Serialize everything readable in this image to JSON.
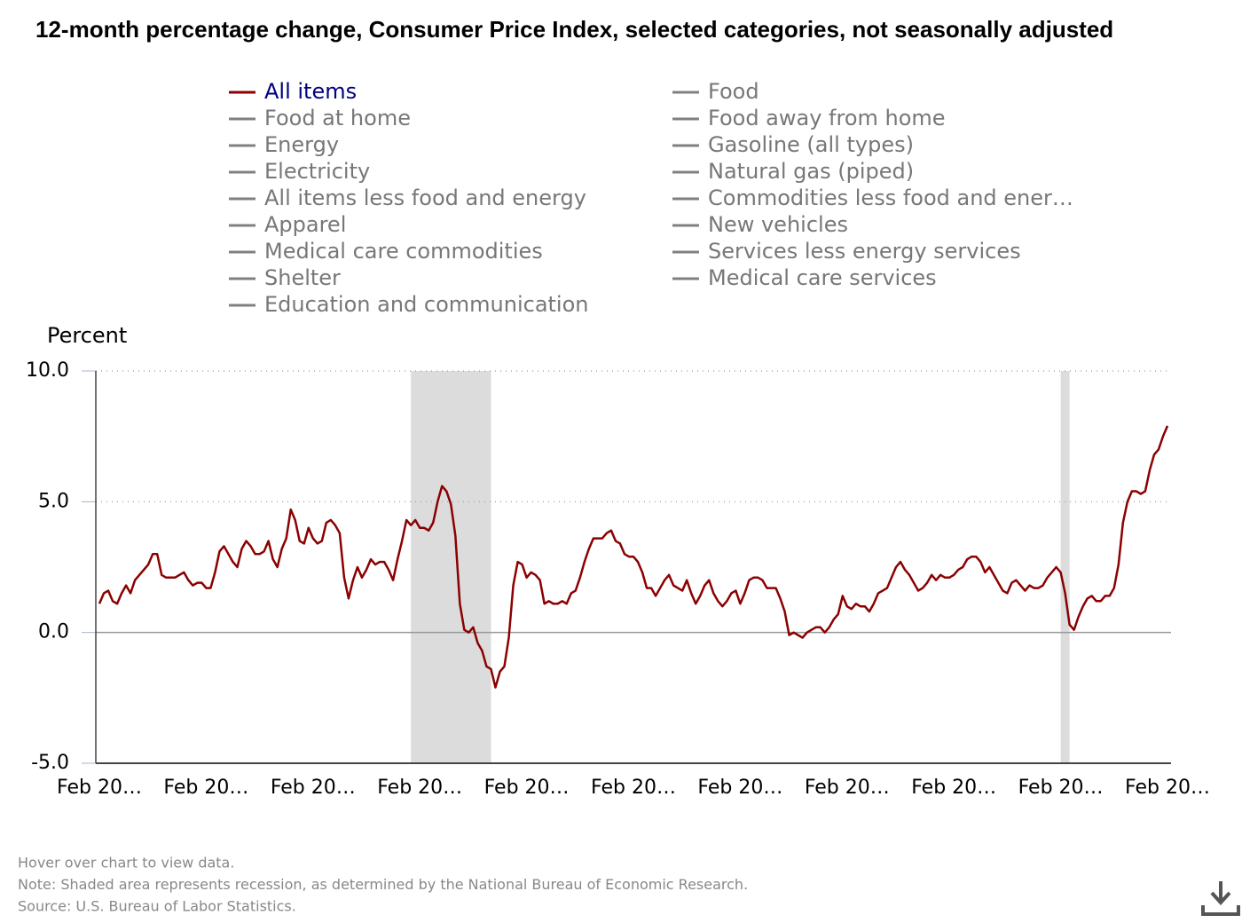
{
  "chart_data": {
    "type": "line",
    "title": "12-month percentage change, Consumer Price Index, selected categories, not seasonally adjusted",
    "y_label": "Percent",
    "categories": [
      "Feb 20…",
      null,
      null,
      null,
      null,
      null,
      null,
      null,
      null,
      null,
      null,
      null,
      null,
      null,
      null,
      null,
      null,
      null,
      null,
      null,
      null,
      null,
      null,
      null,
      "Feb 20…",
      null,
      null,
      null,
      null,
      null,
      null,
      null,
      null,
      null,
      null,
      null,
      null,
      null,
      null,
      null,
      null,
      null,
      null,
      null,
      null,
      null,
      null,
      null,
      "Feb 20…",
      null,
      null,
      null,
      null,
      null,
      null,
      null,
      null,
      null,
      null,
      null,
      null,
      null,
      null,
      null,
      null,
      null,
      null,
      null,
      null,
      null,
      null,
      null,
      "Feb 20…",
      null,
      null,
      null,
      null,
      null,
      null,
      null,
      null,
      null,
      null,
      null,
      null,
      null,
      null,
      null,
      null,
      null,
      null,
      null,
      null,
      null,
      null,
      null,
      "Feb 20…",
      null,
      null,
      null,
      null,
      null,
      null,
      null,
      null,
      null,
      null,
      null,
      null,
      null,
      null,
      null,
      null,
      null,
      null,
      null,
      null,
      null,
      null,
      null,
      "Feb 20…",
      null,
      null,
      null,
      null,
      null,
      null,
      null,
      null,
      null,
      null,
      null,
      null,
      null,
      null,
      null,
      null,
      null,
      null,
      null,
      null,
      null,
      null,
      null,
      "Feb 20…",
      null,
      null,
      null,
      null,
      null,
      null,
      null,
      null,
      null,
      null,
      null,
      null,
      null,
      null,
      null,
      null,
      null,
      null,
      null,
      null,
      null,
      null,
      null,
      "Feb 20…",
      null,
      null,
      null,
      null,
      null,
      null,
      null,
      null,
      null,
      null,
      null,
      null,
      null,
      null,
      null,
      null,
      null,
      null,
      null,
      null,
      null,
      null,
      null,
      "Feb 20…",
      null,
      null,
      null,
      null,
      null,
      null,
      null,
      null,
      null,
      null,
      null,
      null,
      null,
      null,
      null,
      null,
      null,
      null,
      null,
      null,
      null,
      null,
      null,
      "Feb 20…",
      null,
      null,
      null,
      null,
      null,
      null,
      null,
      null,
      null,
      null,
      null,
      null,
      null,
      null,
      null,
      null,
      null,
      null,
      null,
      null,
      null,
      null,
      null,
      "Feb 20…"
    ],
    "series": [
      {
        "name": "All items",
        "color": "#8b0000",
        "values": [
          1.1,
          1.5,
          1.6,
          1.2,
          1.1,
          1.5,
          1.8,
          1.5,
          2.0,
          2.2,
          2.4,
          2.6,
          3.0,
          3.0,
          2.2,
          2.1,
          2.1,
          2.1,
          2.2,
          2.3,
          2.0,
          1.8,
          1.9,
          1.9,
          1.7,
          1.7,
          2.3,
          3.1,
          3.3,
          3.0,
          2.7,
          2.5,
          3.2,
          3.5,
          3.3,
          3.0,
          3.0,
          3.1,
          3.5,
          2.8,
          2.5,
          3.2,
          3.6,
          4.7,
          4.3,
          3.5,
          3.4,
          4.0,
          3.6,
          3.4,
          3.5,
          4.2,
          4.3,
          4.1,
          3.8,
          2.1,
          1.3,
          2.0,
          2.5,
          2.1,
          2.4,
          2.8,
          2.6,
          2.7,
          2.7,
          2.4,
          2.0,
          2.8,
          3.5,
          4.3,
          4.1,
          4.3,
          4.0,
          4.0,
          3.9,
          4.2,
          5.0,
          5.6,
          5.4,
          4.9,
          3.7,
          1.1,
          0.1,
          0.0,
          0.2,
          -0.4,
          -0.7,
          -1.3,
          -1.4,
          -2.1,
          -1.5,
          -1.3,
          -0.2,
          1.8,
          2.7,
          2.6,
          2.1,
          2.3,
          2.2,
          2.0,
          1.1,
          1.2,
          1.1,
          1.1,
          1.2,
          1.1,
          1.5,
          1.6,
          2.1,
          2.7,
          3.2,
          3.6,
          3.6,
          3.6,
          3.8,
          3.9,
          3.5,
          3.4,
          3.0,
          2.9,
          2.9,
          2.7,
          2.3,
          1.7,
          1.7,
          1.4,
          1.7,
          2.0,
          2.2,
          1.8,
          1.7,
          1.6,
          2.0,
          1.5,
          1.1,
          1.4,
          1.8,
          2.0,
          1.5,
          1.2,
          1.0,
          1.2,
          1.5,
          1.6,
          1.1,
          1.5,
          2.0,
          2.1,
          2.1,
          2.0,
          1.7,
          1.7,
          1.7,
          1.3,
          0.8,
          -0.1,
          0.0,
          -0.1,
          -0.2,
          0.0,
          0.1,
          0.2,
          0.2,
          0.0,
          0.2,
          0.5,
          0.7,
          1.4,
          1.0,
          0.9,
          1.1,
          1.0,
          1.0,
          0.8,
          1.1,
          1.5,
          1.6,
          1.7,
          2.1,
          2.5,
          2.7,
          2.4,
          2.2,
          1.9,
          1.6,
          1.7,
          1.9,
          2.2,
          2.0,
          2.2,
          2.1,
          2.1,
          2.2,
          2.4,
          2.5,
          2.8,
          2.9,
          2.9,
          2.7,
          2.3,
          2.5,
          2.2,
          1.9,
          1.6,
          1.5,
          1.9,
          2.0,
          1.8,
          1.6,
          1.8,
          1.7,
          1.7,
          1.8,
          2.1,
          2.3,
          2.5,
          2.3,
          1.5,
          0.3,
          0.1,
          0.6,
          1.0,
          1.3,
          1.4,
          1.2,
          1.2,
          1.4,
          1.4,
          1.7,
          2.6,
          4.2,
          5.0,
          5.4,
          5.4,
          5.3,
          5.4,
          6.2,
          6.8,
          7.0,
          7.5,
          7.9
        ]
      },
      {
        "name": "Food",
        "color": "#808080"
      },
      {
        "name": "Food at home",
        "color": "#808080"
      },
      {
        "name": "Food away from home",
        "color": "#808080"
      },
      {
        "name": "Energy",
        "color": "#808080"
      },
      {
        "name": "Gasoline (all types)",
        "color": "#808080"
      },
      {
        "name": "Electricity",
        "color": "#808080"
      },
      {
        "name": "Natural gas (piped)",
        "color": "#808080"
      },
      {
        "name": "All items less food and energy",
        "color": "#808080"
      },
      {
        "name": "Commodities less food and ener…",
        "color": "#808080"
      },
      {
        "name": "Apparel",
        "color": "#808080"
      },
      {
        "name": "New vehicles",
        "color": "#808080"
      },
      {
        "name": "Medical care commodities",
        "color": "#808080"
      },
      {
        "name": "Services less energy services",
        "color": "#808080"
      },
      {
        "name": "Shelter",
        "color": "#808080"
      },
      {
        "name": "Medical care services",
        "color": "#808080"
      },
      {
        "name": "Education and communication",
        "color": "#808080"
      }
    ],
    "shaded": [
      [
        70,
        88
      ],
      [
        216,
        218
      ]
    ],
    "ylim": [
      -5,
      10
    ],
    "yticks": [
      {
        "value": -5,
        "label": "-5.0"
      },
      {
        "value": 0,
        "label": "0.0"
      },
      {
        "value": 5,
        "label": "5.0"
      },
      {
        "value": 10,
        "label": "10.0"
      }
    ],
    "grid": true,
    "notes": [
      "Hover over chart to view data.",
      "Note: Shaded area represents recession, as determined by the National Bureau of Economic Research.",
      "Source: U.S. Bureau of Labor Statistics."
    ]
  }
}
